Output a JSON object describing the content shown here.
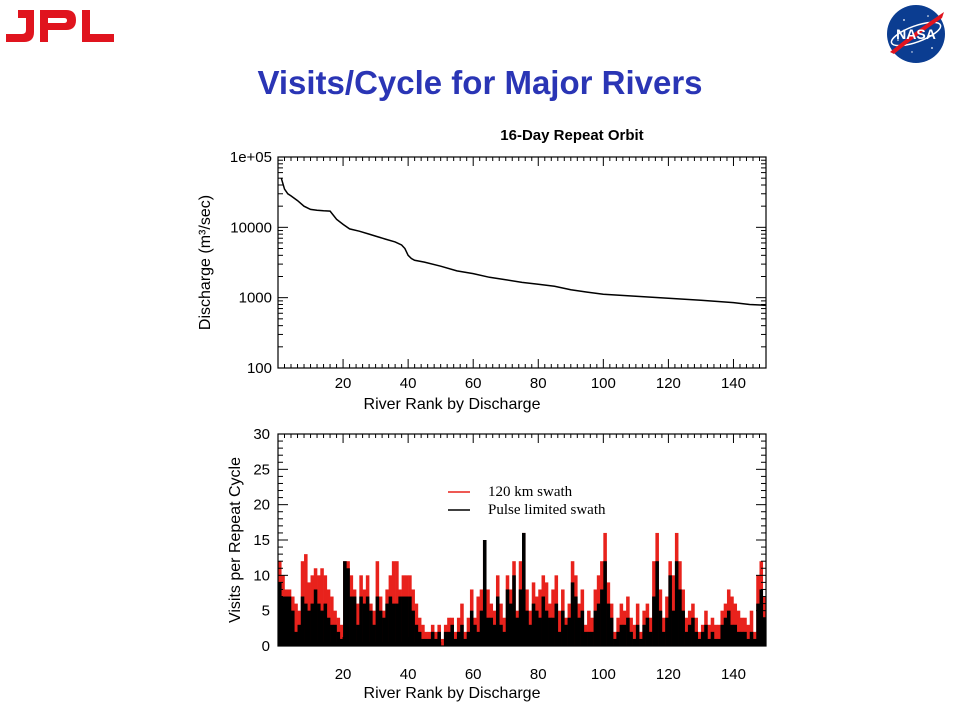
{
  "slide": {
    "title": "Visits/Cycle for Major Rivers",
    "title_color": "#2a35b5",
    "logos": {
      "left": "JPL",
      "right": "NASA",
      "jpl_color": "#e0141e",
      "nasa_color": "#0b3d91"
    }
  },
  "chart_data": [
    {
      "type": "line",
      "title": "16-Day Repeat Orbit",
      "xlabel": "River Rank by Discharge",
      "ylabel": "Discharge (m³/sec)",
      "yscale": "log",
      "xlim": [
        0,
        150
      ],
      "ylim": [
        100,
        100000
      ],
      "x_ticks": [
        20,
        40,
        60,
        80,
        100,
        120,
        140
      ],
      "y_ticks": [
        100,
        1000,
        10000,
        100000
      ],
      "y_tick_labels": [
        "100",
        "1000",
        "10000",
        "1e+05"
      ],
      "series": [
        {
          "color": "#000000",
          "x": [
            1,
            2,
            3,
            4,
            6,
            8,
            10,
            12,
            14,
            16,
            18,
            20,
            22,
            25,
            28,
            30,
            33,
            36,
            38,
            39,
            40,
            41,
            42,
            45,
            50,
            55,
            60,
            65,
            70,
            75,
            80,
            85,
            90,
            95,
            100,
            110,
            120,
            130,
            140,
            145,
            150
          ],
          "y": [
            50000,
            35000,
            30000,
            28000,
            24000,
            20000,
            18000,
            17500,
            17200,
            17000,
            13000,
            11000,
            9500,
            8800,
            8000,
            7500,
            6800,
            6200,
            5600,
            5000,
            4000,
            3600,
            3400,
            3200,
            2800,
            2400,
            2200,
            1950,
            1800,
            1650,
            1550,
            1450,
            1300,
            1200,
            1120,
            1050,
            980,
            920,
            850,
            800,
            780
          ]
        }
      ]
    },
    {
      "type": "bar",
      "xlabel": "River Rank by Discharge",
      "ylabel": "Visits per Repeat Cycle",
      "xlim": [
        0,
        150
      ],
      "ylim": [
        0,
        30
      ],
      "x_ticks": [
        20,
        40,
        60,
        80,
        100,
        120,
        140
      ],
      "y_ticks": [
        0,
        5,
        10,
        15,
        20,
        25,
        30
      ],
      "legend": {
        "placement": "center-right"
      },
      "series": [
        {
          "name": "120 km swath",
          "color": "#e8221c",
          "values": [
            12,
            10,
            8,
            8,
            7,
            6,
            5,
            12,
            13,
            9,
            10,
            11,
            10,
            11,
            10,
            8,
            7,
            5,
            4,
            3,
            12,
            12,
            10,
            8,
            6,
            10,
            8,
            10,
            6,
            5,
            12,
            7,
            5,
            8,
            10,
            12,
            12,
            8,
            10,
            10,
            10,
            8,
            6,
            4,
            3,
            2,
            2,
            3,
            2,
            3,
            1,
            3,
            4,
            4,
            2,
            4,
            6,
            2,
            4,
            8,
            4,
            7,
            8,
            15,
            8,
            6,
            5,
            10,
            6,
            4,
            10,
            8,
            12,
            5,
            12,
            16,
            8,
            5,
            9,
            7,
            8,
            10,
            9,
            6,
            8,
            10,
            5,
            8,
            4,
            6,
            12,
            10,
            6,
            8,
            3,
            5,
            4,
            8,
            10,
            12,
            16,
            9,
            6,
            2,
            4,
            6,
            5,
            7,
            4,
            3,
            6,
            2,
            5,
            6,
            4,
            12,
            16,
            8,
            4,
            7,
            12,
            10,
            16,
            12,
            8,
            4,
            5,
            6,
            4,
            2,
            3,
            5,
            3,
            4,
            3,
            3,
            5,
            6,
            8,
            7,
            6,
            5,
            4,
            4,
            3,
            5,
            2,
            10,
            12,
            7
          ]
        },
        {
          "name": "Pulse limited swath",
          "color": "#000000",
          "values": [
            9,
            7,
            7,
            7,
            5,
            2,
            3,
            7,
            6,
            5,
            6,
            8,
            6,
            5,
            6,
            4,
            3,
            3,
            2,
            1,
            12,
            11,
            7,
            7,
            3,
            7,
            6,
            7,
            5,
            3,
            7,
            5,
            4,
            6,
            7,
            6,
            6,
            7,
            7,
            7,
            7,
            5,
            3,
            2,
            1,
            1,
            1,
            2,
            1,
            2,
            0,
            2,
            2,
            3,
            1,
            2,
            3,
            1,
            2,
            5,
            3,
            2,
            5,
            15,
            4,
            4,
            3,
            7,
            3,
            2,
            8,
            6,
            10,
            4,
            8,
            16,
            5,
            3,
            6,
            5,
            4,
            7,
            5,
            4,
            4,
            6,
            2,
            5,
            3,
            4,
            9,
            7,
            4,
            5,
            2,
            2,
            2,
            5,
            6,
            8,
            12,
            6,
            4,
            1,
            2,
            3,
            3,
            4,
            2,
            1,
            3,
            1,
            3,
            4,
            2,
            7,
            12,
            5,
            2,
            4,
            10,
            5,
            12,
            8,
            5,
            2,
            3,
            4,
            2,
            1,
            2,
            3,
            1,
            2,
            1,
            1,
            3,
            4,
            5,
            3,
            3,
            2,
            2,
            2,
            1,
            2,
            1,
            6,
            8,
            4
          ]
        }
      ]
    }
  ]
}
